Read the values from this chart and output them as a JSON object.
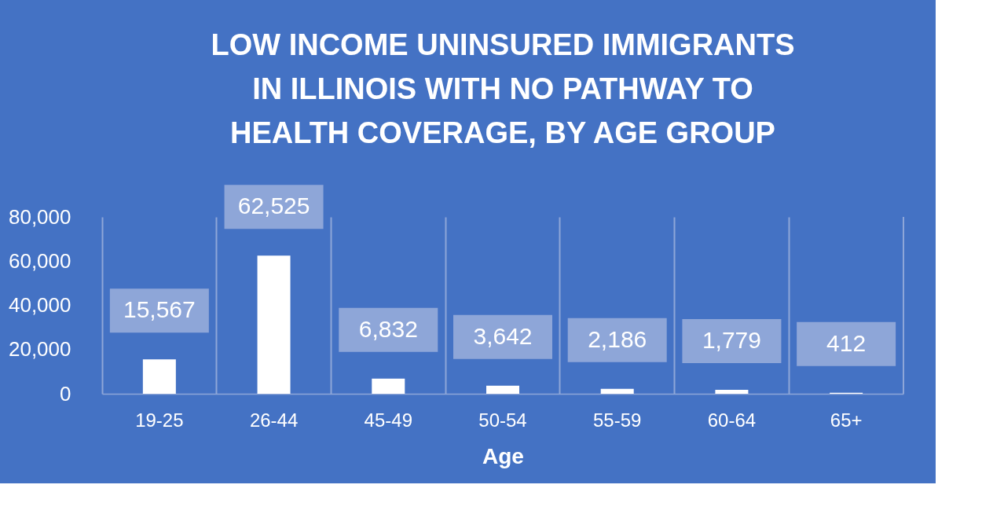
{
  "chart_data": {
    "type": "bar",
    "title": [
      "LOW INCOME UNINSURED IMMIGRANTS",
      "IN ILLINOIS WITH NO PATHWAY TO",
      "HEALTH COVERAGE, BY AGE GROUP"
    ],
    "xlabel": "Age",
    "categories": [
      "19-25",
      "26-44",
      "45-49",
      "50-54",
      "55-59",
      "60-64",
      "65+"
    ],
    "values": [
      15567,
      62525,
      6832,
      3642,
      2186,
      1779,
      412
    ],
    "color": "#ffffff",
    "value_labels": [
      "15,567",
      "62,525",
      "6,832",
      "3,642",
      "2,186",
      "1,779",
      "412"
    ],
    "ylim": [
      0,
      80000
    ],
    "yticks": [
      0,
      {
        "value": 20000,
        "label": "20,000"
      },
      {
        "value": 40000,
        "label": "40,000"
      },
      {
        "value": 60000,
        "label": "60,000"
      },
      {
        "value": 80000,
        "label": "80,000"
      }
    ],
    "grid": "x"
  }
}
